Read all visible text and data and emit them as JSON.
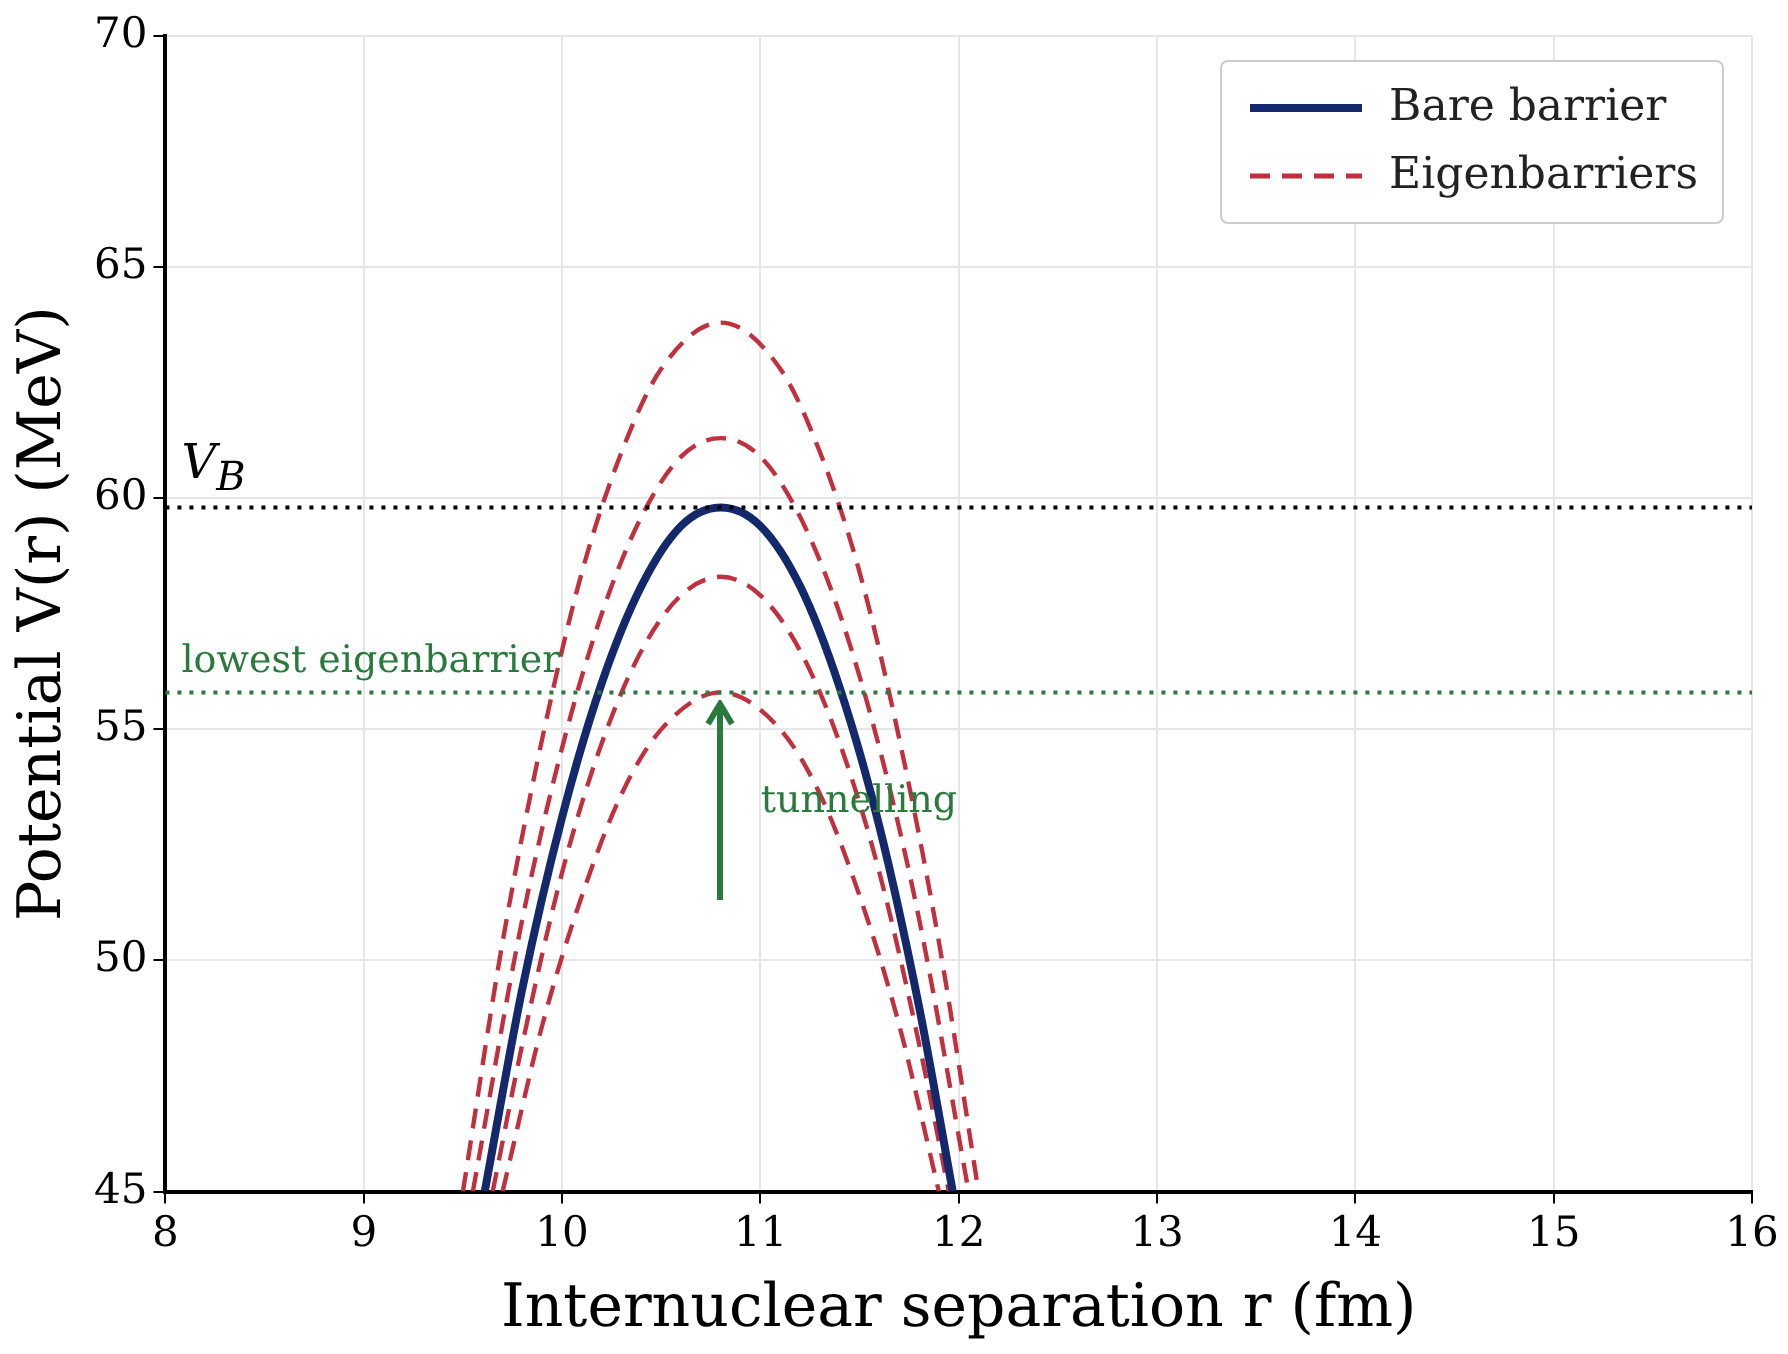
{
  "chart_data": {
    "type": "line",
    "xlabel": "Internuclear separation r (fm)",
    "ylabel": "Potential V(r) (MeV)",
    "xlim": [
      8,
      16
    ],
    "xticks": [
      8,
      9,
      10,
      11,
      12,
      13,
      14,
      15,
      16
    ],
    "ylim": [
      45,
      70
    ],
    "yticks": [
      45,
      50,
      55,
      60,
      65,
      70
    ],
    "grid": true,
    "legend": "top right",
    "marker": "none",
    "series": [
      {
        "name": "Bare barrier",
        "color": "#14296b",
        "line_style": "solid",
        "x": [
          9.61,
          9.8,
          10.0,
          10.2,
          10.4,
          10.6,
          10.8,
          11.0,
          11.2,
          11.4,
          11.6,
          11.8,
          11.97
        ],
        "values": [
          45,
          49.4,
          53.1,
          56.0,
          58.1,
          59.4,
          59.8,
          59.4,
          58.1,
          55.9,
          52.9,
          49.0,
          45
        ]
      },
      {
        "name": "Eigenbarriers",
        "color": "#c0303f",
        "line_style": "dashed",
        "x": [
          9.5,
          9.7,
          9.9,
          10.1,
          10.3,
          10.5,
          10.8,
          11.1,
          11.3,
          11.5,
          11.7,
          11.9,
          12.1
        ],
        "values": [
          45,
          50.4,
          54.8,
          58.4,
          61.0,
          62.8,
          63.8,
          62.8,
          61.0,
          58.4,
          54.8,
          50.4,
          45
        ]
      },
      {
        "color": "#c0303f",
        "line_style": "dashed",
        "x": [
          9.55,
          9.8,
          10.0,
          10.2,
          10.4,
          10.6,
          10.8,
          11.0,
          11.2,
          11.4,
          11.6,
          11.8,
          12.05
        ],
        "values": [
          45,
          50.9,
          54.6,
          57.5,
          59.6,
          60.9,
          61.3,
          60.9,
          59.6,
          57.5,
          54.6,
          50.9,
          45
        ]
      },
      {
        "color": "#c0303f",
        "line_style": "dashed",
        "x": [
          9.65,
          9.8,
          10.0,
          10.2,
          10.4,
          10.6,
          10.8,
          11.0,
          11.2,
          11.4,
          11.6,
          11.8,
          11.95
        ],
        "values": [
          45,
          48.2,
          51.9,
          54.7,
          56.7,
          57.9,
          58.3,
          57.9,
          56.7,
          54.7,
          51.9,
          48.2,
          45
        ]
      },
      {
        "color": "#c0303f",
        "line_style": "dashed",
        "x": [
          9.7,
          9.9,
          10.1,
          10.3,
          10.5,
          10.8,
          11.1,
          11.3,
          11.5,
          11.7,
          11.9
        ],
        "values": [
          45,
          48.6,
          51.4,
          53.6,
          55.0,
          55.8,
          55.0,
          53.6,
          51.4,
          48.6,
          45
        ]
      }
    ],
    "ref_lines": [
      {
        "axis": "y",
        "value": 59.8,
        "label": "V$_{B}$",
        "color": "#000000",
        "line_style": "dotted"
      },
      {
        "axis": "y",
        "value": 55.8,
        "label": "lowest eigenbarrier",
        "color": "#2a7a3e",
        "line_style": "dotted"
      }
    ],
    "annotations": [
      "tunnelling"
    ]
  }
}
